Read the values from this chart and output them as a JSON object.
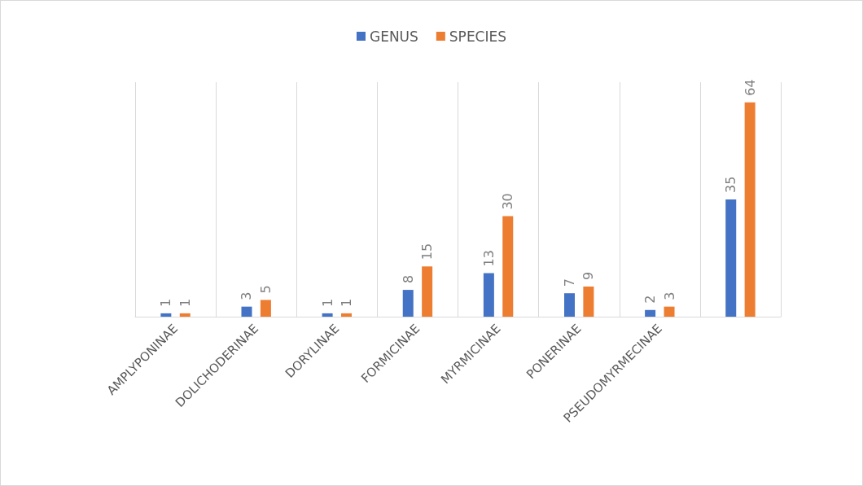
{
  "chart_data": {
    "type": "bar",
    "categories": [
      "AMPLYPONINAE",
      "DOLICHODERINAE",
      "DORYLINAE",
      "FORMICINAE",
      "MYRMICINAE",
      "PONERINAE",
      "PSEUDOMYRMECINAE",
      null
    ],
    "series": [
      {
        "name": "GENUS",
        "color": "#4472c4",
        "values": [
          1,
          3,
          1,
          8,
          13,
          7,
          2,
          35
        ]
      },
      {
        "name": "SPECIES",
        "color": "#ed7d31",
        "values": [
          1,
          5,
          1,
          15,
          30,
          9,
          3,
          64
        ]
      }
    ],
    "data_labels": true,
    "grid": "x",
    "legend": "top"
  }
}
